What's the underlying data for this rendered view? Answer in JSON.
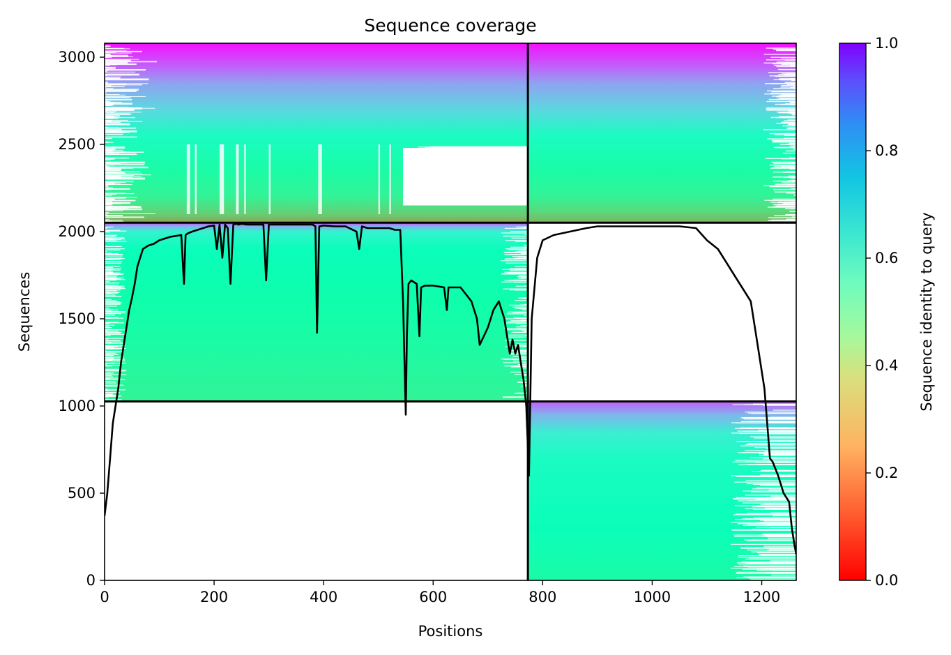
{
  "chart_data": {
    "type": "heatmap",
    "title": "Sequence coverage",
    "xlabel": "Positions",
    "ylabel": "Sequences",
    "xlim": [
      0,
      1263
    ],
    "ylim": [
      0,
      3080
    ],
    "x_ticks": [
      "0",
      "200",
      "400",
      "600",
      "800",
      "1000",
      "1200"
    ],
    "y_ticks": [
      "0",
      "500",
      "1000",
      "1500",
      "2000",
      "2500",
      "3000"
    ],
    "colorbar": {
      "label": "Sequence identity to query",
      "range": [
        0.0,
        1.0
      ],
      "ticks": [
        "0.0",
        "0.2",
        "0.4",
        "0.6",
        "0.8",
        "1.0"
      ],
      "colormap": "rainbow_r"
    },
    "boundaries": {
      "vertical_x": 773,
      "horizontal_y": [
        1026,
        2051
      ]
    },
    "blocks": [
      {
        "x": [
          0,
          773
        ],
        "y": [
          2051,
          3080
        ],
        "identity_gradient": [
          [
            2051,
            0.22
          ],
          [
            2100,
            0.3
          ],
          [
            2200,
            0.4
          ],
          [
            2350,
            0.45
          ],
          [
            2550,
            0.55
          ],
          [
            2700,
            0.68
          ],
          [
            2850,
            0.78
          ],
          [
            2950,
            0.88
          ],
          [
            3080,
            0.98
          ]
        ]
      },
      {
        "x": [
          773,
          1263
        ],
        "y": [
          2051,
          3080
        ],
        "identity_gradient": [
          [
            2051,
            0.25
          ],
          [
            2120,
            0.33
          ],
          [
            2200,
            0.4
          ],
          [
            2350,
            0.45
          ],
          [
            2550,
            0.55
          ],
          [
            2700,
            0.68
          ],
          [
            2850,
            0.78
          ],
          [
            2950,
            0.88
          ],
          [
            3080,
            0.98
          ]
        ]
      },
      {
        "x": [
          0,
          773
        ],
        "y": [
          1026,
          2051
        ],
        "identity_gradient": [
          [
            1026,
            0.4
          ],
          [
            1300,
            0.44
          ],
          [
            1600,
            0.47
          ],
          [
            1900,
            0.52
          ],
          [
            2000,
            0.6
          ],
          [
            2030,
            0.75
          ],
          [
            2051,
            0.9
          ]
        ]
      },
      {
        "x": [
          773,
          1263
        ],
        "y": [
          0,
          1026
        ],
        "identity_gradient": [
          [
            0,
            0.45
          ],
          [
            300,
            0.52
          ],
          [
            700,
            0.55
          ],
          [
            850,
            0.62
          ],
          [
            950,
            0.75
          ],
          [
            1026,
            0.88
          ]
        ]
      }
    ],
    "coverage_line": {
      "x": [
        0,
        5,
        10,
        15,
        20,
        25,
        30,
        35,
        40,
        45,
        50,
        55,
        60,
        70,
        80,
        90,
        100,
        110,
        120,
        130,
        140,
        145,
        148,
        152,
        160,
        170,
        180,
        190,
        200,
        205,
        210,
        215,
        220,
        225,
        230,
        235,
        240,
        245,
        250,
        260,
        270,
        280,
        290,
        295,
        300,
        305,
        320,
        340,
        360,
        380,
        385,
        388,
        392,
        400,
        420,
        440,
        460,
        465,
        470,
        480,
        500,
        520,
        530,
        540,
        545,
        550,
        552,
        555,
        560,
        570,
        575,
        578,
        585,
        600,
        620,
        625,
        628,
        635,
        650,
        670,
        680,
        685,
        700,
        710,
        720,
        730,
        740,
        745,
        750,
        755,
        760,
        765,
        770,
        775,
        780,
        790,
        800,
        820,
        850,
        880,
        900,
        950,
        1000,
        1050,
        1080,
        1100,
        1120,
        1140,
        1150,
        1160,
        1170,
        1180,
        1190,
        1200,
        1205,
        1210,
        1215,
        1220,
        1230,
        1240,
        1250,
        1255,
        1260,
        1263
      ],
      "y": [
        370,
        500,
        700,
        900,
        1000,
        1100,
        1250,
        1350,
        1450,
        1550,
        1620,
        1700,
        1800,
        1900,
        1920,
        1930,
        1950,
        1960,
        1970,
        1975,
        1980,
        1700,
        1980,
        1990,
        2000,
        2010,
        2020,
        2030,
        2035,
        1900,
        2040,
        1850,
        2040,
        2020,
        1700,
        2040,
        2045,
        2040,
        2045,
        2040,
        2040,
        2040,
        2040,
        1720,
        2040,
        2040,
        2040,
        2040,
        2040,
        2040,
        2030,
        1420,
        2030,
        2035,
        2030,
        2030,
        2000,
        1900,
        2030,
        2020,
        2020,
        2020,
        2010,
        2010,
        1600,
        950,
        1400,
        1700,
        1720,
        1700,
        1400,
        1680,
        1690,
        1690,
        1680,
        1550,
        1680,
        1680,
        1680,
        1600,
        1500,
        1350,
        1450,
        1550,
        1600,
        1500,
        1300,
        1380,
        1300,
        1350,
        1250,
        1150,
        1000,
        600,
        1500,
        1850,
        1950,
        1980,
        2000,
        2020,
        2030,
        2030,
        2030,
        2030,
        2020,
        1950,
        1900,
        1800,
        1750,
        1700,
        1650,
        1600,
        1400,
        1200,
        1100,
        900,
        700,
        680,
        600,
        500,
        450,
        300,
        200,
        150
      ]
    }
  }
}
